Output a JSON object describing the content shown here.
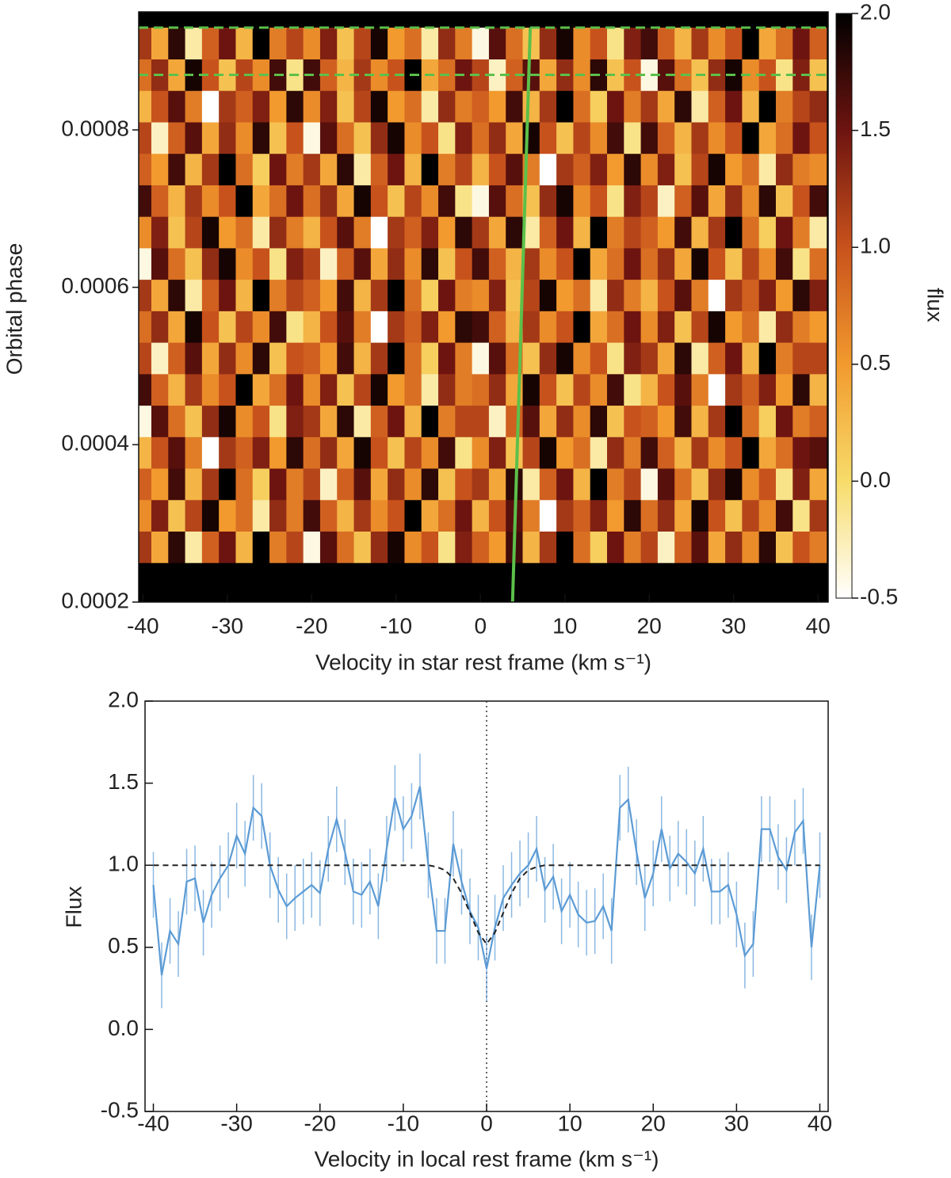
{
  "chart_data": [
    {
      "type": "heatmap",
      "ylabel": "Orbital phase",
      "xlabel": "Velocity in star rest frame (km s⁻¹)",
      "colorbar_label": "flux",
      "xlim": [
        -40.5,
        41.2
      ],
      "xticks": [
        -40,
        -30,
        -20,
        -10,
        0,
        10,
        20,
        30,
        40
      ],
      "ylim": [
        0.0002,
        0.00095
      ],
      "yticks": [
        0.0002,
        0.0004,
        0.0006,
        0.0008
      ],
      "clim": [
        -0.5,
        2.0
      ],
      "cticks": [
        -0.5,
        {
          "value": 0,
          "label": "0.0"
        },
        0.5,
        {
          "value": 1,
          "label": "1.0"
        },
        1.5,
        {
          "value": 2,
          "label": "2.0"
        }
      ],
      "colormap": [
        "#ffffff",
        "#f7dc6a",
        "#f29a2e",
        "#c8521c",
        "#6e1410",
        "#000000"
      ],
      "x": [
        -40,
        -38,
        -36,
        -34,
        -32,
        -30,
        -28,
        -26,
        -24,
        -22,
        -20,
        -18,
        -16,
        -14,
        -12,
        -10,
        -8,
        -6,
        -4,
        -2,
        0,
        2,
        4,
        6,
        8,
        10,
        12,
        14,
        16,
        18,
        20,
        22,
        24,
        26,
        28,
        30,
        32,
        34,
        36,
        38,
        40
      ],
      "x_step": 2,
      "y": [
        0.00027,
        0.00031,
        0.00035,
        0.00039,
        0.00043,
        0.00047,
        0.00051,
        0.00055,
        0.00059,
        0.00063,
        0.00067,
        0.00071,
        0.00075,
        0.00079,
        0.00083,
        0.00087,
        0.00091
      ],
      "y_step": 4e-05,
      "z": [
        [
          1.2,
          0.4,
          1.8,
          -0.2,
          0.9,
          1.5,
          0.3,
          2.0,
          0.7,
          1.1,
          -0.4,
          1.6,
          0.8,
          0.2,
          1.3,
          1.9,
          0.6,
          1.0,
          -0.1,
          1.4,
          0.9,
          0.5,
          1.7,
          0.3,
          1.2,
          2.0,
          0.8,
          0.1,
          1.5,
          0.7,
          1.1,
          -0.3,
          0.9,
          1.6,
          0.4,
          1.3,
          0.6,
          1.8,
          0.2,
          1.0,
          0.7
        ],
        [
          0.6,
          1.4,
          0.2,
          1.1,
          1.9,
          0.5,
          0.8,
          -0.2,
          1.3,
          0.7,
          1.7,
          0.9,
          0.3,
          1.2,
          0.6,
          1.0,
          2.0,
          0.4,
          0.8,
          1.5,
          0.3,
          1.0,
          1.6,
          0.7,
          -0.5,
          1.2,
          0.9,
          1.4,
          0.5,
          1.8,
          0.8,
          1.3,
          0.4,
          1.9,
          1.0,
          0.2,
          1.1,
          0.6,
          1.7,
          -0.1,
          1.2
        ],
        [
          0.9,
          0.5,
          1.7,
          0.3,
          1.2,
          2.0,
          0.8,
          0.1,
          1.5,
          0.7,
          1.1,
          -0.3,
          0.9,
          1.6,
          0.4,
          1.3,
          0.6,
          1.8,
          0.2,
          1.0,
          1.2,
          0.4,
          1.8,
          -0.2,
          0.9,
          1.5,
          0.3,
          2.0,
          0.7,
          1.1,
          -0.4,
          1.6,
          0.8,
          0.2,
          1.3,
          1.9,
          0.6,
          1.0,
          -0.1,
          1.4,
          0.4
        ],
        [
          0.3,
          1.0,
          1.6,
          0.7,
          -0.5,
          1.2,
          0.9,
          1.4,
          0.5,
          1.8,
          0.8,
          1.3,
          0.4,
          1.9,
          1.0,
          0.2,
          1.1,
          0.6,
          1.7,
          -0.1,
          0.6,
          1.4,
          0.2,
          1.1,
          1.9,
          0.5,
          0.8,
          -0.2,
          1.3,
          0.7,
          1.7,
          0.9,
          0.3,
          1.2,
          0.6,
          1.0,
          2.0,
          0.4,
          0.8,
          1.5,
          1.6
        ],
        [
          -0.4,
          1.6,
          0.8,
          0.2,
          1.3,
          1.9,
          0.6,
          1.0,
          -0.1,
          1.4,
          1.2,
          0.4,
          1.8,
          -0.2,
          0.9,
          1.5,
          0.3,
          2.0,
          0.7,
          1.1,
          1.1,
          -0.3,
          0.9,
          1.6,
          0.4,
          1.3,
          0.6,
          1.8,
          0.2,
          1.0,
          0.9,
          0.5,
          1.7,
          0.3,
          1.2,
          2.0,
          0.8,
          0.1,
          1.5,
          0.7,
          0.9
        ],
        [
          1.7,
          0.9,
          0.3,
          1.2,
          0.6,
          1.0,
          2.0,
          0.4,
          0.8,
          1.5,
          0.6,
          1.4,
          0.2,
          1.1,
          1.9,
          0.5,
          0.8,
          -0.2,
          1.3,
          0.7,
          0.8,
          1.3,
          0.4,
          1.9,
          1.0,
          0.2,
          1.1,
          0.6,
          1.7,
          -0.1,
          0.3,
          1.0,
          1.6,
          0.7,
          -0.5,
          1.2,
          0.9,
          1.4,
          0.5,
          1.8,
          0.3
        ],
        [
          1.1,
          -0.3,
          0.9,
          1.6,
          0.4,
          1.3,
          0.6,
          1.8,
          0.2,
          1.0,
          0.9,
          0.5,
          1.7,
          0.3,
          1.2,
          2.0,
          0.8,
          0.1,
          1.5,
          0.7,
          -0.4,
          1.6,
          0.8,
          0.2,
          1.3,
          1.9,
          0.6,
          1.0,
          -0.1,
          1.4,
          1.2,
          0.4,
          1.8,
          -0.2,
          0.9,
          1.5,
          0.3,
          2.0,
          0.7,
          1.1,
          1.1
        ],
        [
          0.8,
          1.3,
          0.4,
          1.9,
          1.0,
          0.2,
          1.1,
          0.6,
          1.7,
          -0.1,
          0.3,
          1.0,
          1.6,
          0.7,
          -0.5,
          1.2,
          0.9,
          1.4,
          0.5,
          1.8,
          1.7,
          0.9,
          0.3,
          1.2,
          0.6,
          1.0,
          2.0,
          0.4,
          0.8,
          1.5,
          0.6,
          1.4,
          0.2,
          1.1,
          1.9,
          0.5,
          0.8,
          -0.2,
          1.3,
          0.7,
          0.5
        ],
        [
          1.2,
          0.4,
          1.8,
          -0.2,
          0.9,
          1.5,
          0.3,
          2.0,
          0.7,
          1.1,
          0.9,
          0.5,
          1.7,
          0.3,
          1.2,
          2.0,
          0.8,
          0.1,
          1.5,
          0.7,
          0.6,
          1.4,
          0.2,
          1.1,
          1.9,
          0.5,
          0.8,
          -0.2,
          1.3,
          0.7,
          0.3,
          1.0,
          1.6,
          0.7,
          -0.5,
          1.2,
          0.9,
          1.4,
          0.5,
          1.8,
          1.4
        ],
        [
          -0.4,
          1.6,
          0.8,
          0.2,
          1.3,
          1.9,
          0.6,
          1.0,
          -0.1,
          1.4,
          1.1,
          -0.3,
          0.9,
          1.6,
          0.4,
          1.3,
          0.6,
          1.8,
          0.2,
          1.0,
          1.7,
          0.9,
          0.3,
          1.2,
          0.6,
          1.0,
          2.0,
          0.4,
          0.8,
          1.5,
          0.8,
          1.3,
          0.4,
          1.9,
          1.0,
          0.2,
          1.1,
          0.6,
          1.7,
          -0.1,
          0.8
        ],
        [
          0.6,
          1.4,
          0.2,
          1.1,
          1.9,
          0.5,
          0.8,
          -0.2,
          1.3,
          0.7,
          0.3,
          1.0,
          1.6,
          0.7,
          -0.5,
          1.2,
          0.9,
          1.4,
          0.5,
          1.8,
          1.2,
          0.4,
          1.8,
          -0.2,
          0.9,
          1.5,
          0.3,
          2.0,
          0.7,
          1.1,
          0.9,
          0.5,
          1.7,
          0.3,
          1.2,
          2.0,
          0.8,
          0.1,
          1.5,
          0.7,
          -0.2
        ],
        [
          1.7,
          0.9,
          0.3,
          1.2,
          0.6,
          1.0,
          2.0,
          0.4,
          0.8,
          1.5,
          0.8,
          1.3,
          0.4,
          1.9,
          1.0,
          0.2,
          1.1,
          0.6,
          1.7,
          -0.1,
          -0.4,
          1.6,
          0.8,
          0.2,
          1.3,
          1.9,
          0.6,
          1.0,
          -0.1,
          1.4,
          1.1,
          -0.3,
          0.9,
          1.6,
          0.4,
          1.3,
          0.6,
          1.8,
          0.2,
          1.0,
          1.7
        ],
        [
          0.9,
          0.5,
          1.7,
          0.3,
          1.2,
          2.0,
          0.8,
          0.1,
          1.5,
          0.7,
          1.2,
          0.4,
          1.8,
          -0.2,
          0.9,
          1.5,
          0.3,
          2.0,
          0.7,
          1.1,
          0.3,
          1.0,
          1.6,
          0.7,
          -0.5,
          1.2,
          0.9,
          1.4,
          0.5,
          1.8,
          0.6,
          1.4,
          0.2,
          1.1,
          1.9,
          0.5,
          0.8,
          -0.2,
          1.3,
          0.7,
          0.6
        ],
        [
          1.1,
          -0.3,
          0.9,
          1.6,
          0.4,
          1.3,
          0.6,
          1.8,
          0.2,
          1.0,
          -0.4,
          1.6,
          0.8,
          0.2,
          1.3,
          1.9,
          0.6,
          1.0,
          -0.1,
          1.4,
          0.8,
          1.3,
          0.4,
          1.9,
          1.0,
          0.2,
          1.1,
          0.6,
          1.7,
          -0.1,
          1.7,
          0.9,
          0.3,
          1.2,
          0.6,
          1.0,
          2.0,
          0.4,
          0.8,
          1.5,
          1.0
        ],
        [
          0.3,
          1.0,
          1.6,
          0.7,
          -0.5,
          1.2,
          0.9,
          1.4,
          0.5,
          1.8,
          0.6,
          1.4,
          0.2,
          1.1,
          1.9,
          0.5,
          0.8,
          -0.2,
          1.3,
          0.7,
          0.9,
          0.5,
          1.7,
          0.3,
          1.2,
          2.0,
          0.8,
          0.1,
          1.5,
          0.7,
          1.2,
          0.4,
          1.8,
          -0.2,
          0.9,
          1.5,
          0.3,
          2.0,
          0.7,
          1.1,
          1.3
        ],
        [
          0.8,
          1.3,
          0.4,
          1.9,
          1.0,
          0.2,
          1.1,
          0.6,
          1.7,
          -0.1,
          1.7,
          0.9,
          0.3,
          1.2,
          0.6,
          1.0,
          2.0,
          0.4,
          0.8,
          1.5,
          1.1,
          -0.3,
          0.9,
          1.6,
          0.4,
          1.3,
          0.6,
          1.8,
          0.2,
          1.0,
          -0.4,
          1.6,
          0.8,
          0.2,
          1.3,
          1.9,
          0.6,
          1.0,
          -0.1,
          1.4,
          0.2
        ],
        [
          1.2,
          0.4,
          1.8,
          -0.2,
          0.9,
          1.5,
          0.3,
          2.0,
          0.7,
          1.1,
          0.6,
          1.4,
          0.2,
          1.1,
          1.9,
          0.5,
          0.8,
          -0.2,
          1.3,
          0.7,
          -0.4,
          1.6,
          0.8,
          0.2,
          1.3,
          1.9,
          0.6,
          1.0,
          -0.1,
          1.4,
          1.7,
          0.9,
          0.3,
          1.2,
          0.6,
          1.0,
          2.0,
          0.4,
          0.8,
          1.5,
          0.9
        ]
      ],
      "hlines": [
        0.00093,
        0.00087
      ],
      "track": {
        "x": [
          3.8,
          5.9
        ],
        "y": [
          0.0002,
          0.00093
        ]
      },
      "annotation_color": "#5cc04a"
    },
    {
      "type": "line",
      "ylabel": "Flux",
      "xlabel": "Velocity in local rest frame (km s⁻¹)",
      "xlim": [
        -41,
        41
      ],
      "xticks": [
        -40,
        -30,
        -20,
        -10,
        0,
        10,
        20,
        30,
        40
      ],
      "ylim": [
        -0.5,
        2.0
      ],
      "yticks": [
        -0.5,
        {
          "value": 0,
          "label": "0.0"
        },
        0.5,
        {
          "value": 1,
          "label": "1.0"
        },
        1.5,
        {
          "value": 2,
          "label": "2.0"
        }
      ],
      "vline": 0,
      "x": [
        -40,
        -39,
        -38,
        -37,
        -36,
        -35,
        -34,
        -33,
        -32,
        -31,
        -30,
        -29,
        -28,
        -27,
        -26,
        -25,
        -24,
        -23,
        -22,
        -21,
        -20,
        -19,
        -18,
        -17,
        -16,
        -15,
        -14,
        -13,
        -12,
        -11,
        -10,
        -9,
        -8,
        -7,
        -6,
        -5,
        -4,
        -3,
        -2,
        -1,
        0,
        1,
        2,
        3,
        4,
        5,
        6,
        7,
        8,
        9,
        10,
        11,
        12,
        13,
        14,
        15,
        16,
        17,
        18,
        19,
        20,
        21,
        22,
        23,
        24,
        25,
        26,
        27,
        28,
        29,
        30,
        31,
        32,
        33,
        34,
        35,
        36,
        37,
        38,
        39,
        40
      ],
      "series": [
        {
          "color": "#5b9bd5",
          "error": 0.2,
          "values": [
            0.88,
            0.33,
            0.6,
            0.52,
            0.9,
            0.92,
            0.65,
            0.82,
            0.92,
            1.0,
            1.18,
            1.07,
            1.35,
            1.3,
            1.0,
            0.85,
            0.75,
            0.8,
            0.84,
            0.88,
            0.83,
            1.1,
            1.28,
            1.08,
            0.84,
            0.82,
            0.9,
            0.75,
            1.1,
            1.41,
            1.22,
            1.3,
            1.48,
            1.0,
            0.6,
            0.6,
            1.13,
            0.9,
            0.72,
            0.62,
            0.37,
            0.62,
            0.8,
            0.88,
            0.95,
            1.0,
            1.1,
            0.85,
            0.93,
            0.72,
            0.82,
            0.7,
            0.65,
            0.66,
            0.75,
            0.6,
            1.35,
            1.4,
            1.08,
            0.8,
            0.95,
            1.22,
            0.98,
            1.07,
            1.02,
            0.95,
            1.1,
            0.84,
            0.84,
            0.88,
            0.7,
            0.45,
            0.52,
            1.22,
            1.22,
            1.05,
            0.97,
            1.2,
            1.27,
            0.5,
            1.0
          ]
        },
        {
          "color": "#222222",
          "dashed": true,
          "values": [
            1.0,
            1.0,
            1.0,
            1.0,
            1.0,
            1.0,
            1.0,
            1.0,
            1.0,
            1.0,
            1.0,
            1.0,
            1.0,
            1.0,
            1.0,
            1.0,
            1.0,
            1.0,
            1.0,
            1.0,
            1.0,
            1.0,
            1.0,
            1.0,
            1.0,
            1.0,
            1.0,
            1.0,
            1.0,
            1.0,
            1.0,
            1.0,
            1.0,
            1.0,
            0.99,
            0.97,
            0.92,
            0.83,
            0.71,
            0.59,
            0.52,
            0.59,
            0.71,
            0.83,
            0.92,
            0.97,
            0.99,
            1.0,
            1.0,
            1.0,
            1.0,
            1.0,
            1.0,
            1.0,
            1.0,
            1.0,
            1.0,
            1.0,
            1.0,
            1.0,
            1.0,
            1.0,
            1.0,
            1.0,
            1.0,
            1.0,
            1.0,
            1.0,
            1.0,
            1.0,
            1.0,
            1.0,
            1.0,
            1.0,
            1.0,
            1.0,
            1.0,
            1.0,
            1.0,
            1.0,
            1.0
          ]
        }
      ]
    }
  ]
}
